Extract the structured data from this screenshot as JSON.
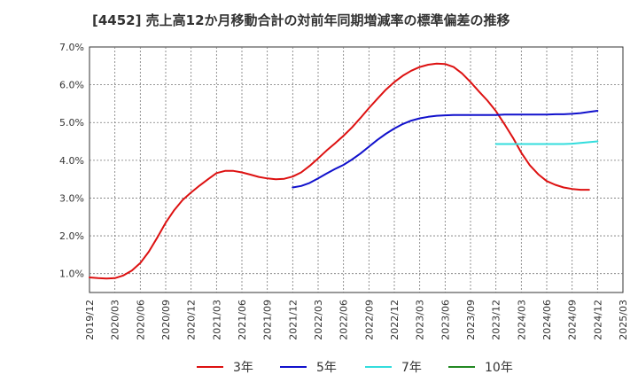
{
  "chart_data": {
    "type": "line",
    "title": "[4452]  売上高12か月移動合計の対前年同期増減率の標準偏差の推移",
    "xlabel": "",
    "ylabel": "",
    "ylim": [
      0.5,
      7.0
    ],
    "x_ticks": [
      "2019/12",
      "2020/03",
      "2020/06",
      "2020/09",
      "2020/12",
      "2021/03",
      "2021/06",
      "2021/09",
      "2021/12",
      "2022/03",
      "2022/06",
      "2022/09",
      "2022/12",
      "2023/03",
      "2023/06",
      "2023/09",
      "2023/12",
      "2024/03",
      "2024/06",
      "2024/09",
      "2024/12",
      "2025/03"
    ],
    "y_ticks": [
      1.0,
      2.0,
      3.0,
      4.0,
      5.0,
      6.0,
      7.0
    ],
    "y_tick_format": "%",
    "grid": true,
    "legend_position": "bottom",
    "series": [
      {
        "name": "3年",
        "color": "#dd1111",
        "points": [
          [
            "2019/12",
            0.9
          ],
          [
            "2020/01",
            0.88
          ],
          [
            "2020/02",
            0.87
          ],
          [
            "2020/03",
            0.88
          ],
          [
            "2020/04",
            0.95
          ],
          [
            "2020/05",
            1.08
          ],
          [
            "2020/06",
            1.28
          ],
          [
            "2020/07",
            1.58
          ],
          [
            "2020/08",
            1.95
          ],
          [
            "2020/09",
            2.35
          ],
          [
            "2020/10",
            2.68
          ],
          [
            "2020/11",
            2.95
          ],
          [
            "2020/12",
            3.15
          ],
          [
            "2021/01",
            3.33
          ],
          [
            "2021/02",
            3.5
          ],
          [
            "2021/03",
            3.66
          ],
          [
            "2021/04",
            3.72
          ],
          [
            "2021/05",
            3.72
          ],
          [
            "2021/06",
            3.68
          ],
          [
            "2021/07",
            3.62
          ],
          [
            "2021/08",
            3.56
          ],
          [
            "2021/09",
            3.52
          ],
          [
            "2021/10",
            3.5
          ],
          [
            "2021/11",
            3.51
          ],
          [
            "2021/12",
            3.57
          ],
          [
            "2022/01",
            3.68
          ],
          [
            "2022/02",
            3.85
          ],
          [
            "2022/03",
            4.05
          ],
          [
            "2022/04",
            4.26
          ],
          [
            "2022/05",
            4.45
          ],
          [
            "2022/06",
            4.65
          ],
          [
            "2022/07",
            4.87
          ],
          [
            "2022/08",
            5.12
          ],
          [
            "2022/09",
            5.38
          ],
          [
            "2022/10",
            5.63
          ],
          [
            "2022/11",
            5.87
          ],
          [
            "2022/12",
            6.07
          ],
          [
            "2023/01",
            6.24
          ],
          [
            "2023/02",
            6.37
          ],
          [
            "2023/03",
            6.47
          ],
          [
            "2023/04",
            6.53
          ],
          [
            "2023/05",
            6.56
          ],
          [
            "2023/06",
            6.55
          ],
          [
            "2023/07",
            6.47
          ],
          [
            "2023/08",
            6.3
          ],
          [
            "2023/09",
            6.07
          ],
          [
            "2023/10",
            5.82
          ],
          [
            "2023/11",
            5.58
          ],
          [
            "2023/12",
            5.3
          ],
          [
            "2024/01",
            4.96
          ],
          [
            "2024/02",
            4.6
          ],
          [
            "2024/03",
            4.2
          ],
          [
            "2024/04",
            3.87
          ],
          [
            "2024/05",
            3.63
          ],
          [
            "2024/06",
            3.45
          ],
          [
            "2024/07",
            3.35
          ],
          [
            "2024/08",
            3.28
          ],
          [
            "2024/09",
            3.24
          ],
          [
            "2024/10",
            3.22
          ],
          [
            "2024/11",
            3.22
          ]
        ]
      },
      {
        "name": "5年",
        "color": "#1111cc",
        "points": [
          [
            "2021/12",
            3.28
          ],
          [
            "2022/01",
            3.32
          ],
          [
            "2022/02",
            3.4
          ],
          [
            "2022/03",
            3.52
          ],
          [
            "2022/04",
            3.65
          ],
          [
            "2022/05",
            3.77
          ],
          [
            "2022/06",
            3.88
          ],
          [
            "2022/07",
            4.02
          ],
          [
            "2022/08",
            4.18
          ],
          [
            "2022/09",
            4.36
          ],
          [
            "2022/10",
            4.54
          ],
          [
            "2022/11",
            4.7
          ],
          [
            "2022/12",
            4.84
          ],
          [
            "2023/01",
            4.96
          ],
          [
            "2023/02",
            5.05
          ],
          [
            "2023/03",
            5.11
          ],
          [
            "2023/04",
            5.15
          ],
          [
            "2023/05",
            5.18
          ],
          [
            "2023/06",
            5.19
          ],
          [
            "2023/07",
            5.2
          ],
          [
            "2023/08",
            5.2
          ],
          [
            "2023/09",
            5.2
          ],
          [
            "2023/10",
            5.2
          ],
          [
            "2023/11",
            5.2
          ],
          [
            "2023/12",
            5.2
          ],
          [
            "2024/01",
            5.21
          ],
          [
            "2024/02",
            5.21
          ],
          [
            "2024/03",
            5.21
          ],
          [
            "2024/04",
            5.21
          ],
          [
            "2024/05",
            5.21
          ],
          [
            "2024/06",
            5.21
          ],
          [
            "2024/07",
            5.22
          ],
          [
            "2024/08",
            5.22
          ],
          [
            "2024/09",
            5.23
          ],
          [
            "2024/10",
            5.25
          ],
          [
            "2024/11",
            5.28
          ],
          [
            "2024/12",
            5.31
          ]
        ]
      },
      {
        "name": "7年",
        "color": "#33dddd",
        "points": [
          [
            "2023/12",
            4.43
          ],
          [
            "2024/01",
            4.43
          ],
          [
            "2024/02",
            4.43
          ],
          [
            "2024/03",
            4.43
          ],
          [
            "2024/04",
            4.43
          ],
          [
            "2024/05",
            4.43
          ],
          [
            "2024/06",
            4.43
          ],
          [
            "2024/07",
            4.43
          ],
          [
            "2024/08",
            4.43
          ],
          [
            "2024/09",
            4.44
          ],
          [
            "2024/10",
            4.46
          ],
          [
            "2024/11",
            4.48
          ],
          [
            "2024/12",
            4.5
          ]
        ]
      },
      {
        "name": "10年",
        "color": "#228822",
        "points": []
      }
    ]
  }
}
